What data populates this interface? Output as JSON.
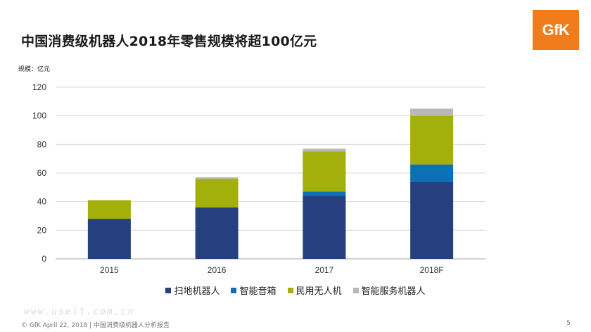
{
  "header": {
    "title": "中国消费级机器人2018年零售规模将超100亿元",
    "logo_text": "GfK",
    "unit_label": "规模：亿元"
  },
  "chart_data": {
    "type": "bar",
    "stacked": true,
    "title": "中国消费级机器人2018年零售规模将超100亿元",
    "ylabel": "规模：亿元",
    "xlabel": "",
    "categories": [
      "2015",
      "2016",
      "2017",
      "2018F"
    ],
    "ylim": [
      0,
      120
    ],
    "yticks": [
      0,
      20,
      40,
      60,
      80,
      100,
      120
    ],
    "grid": true,
    "legend_position": "bottom",
    "series": [
      {
        "name": "扫地机器人",
        "color": "#263f7e",
        "values": [
          28,
          36,
          44,
          54
        ]
      },
      {
        "name": "智能音箱",
        "color": "#0b71b5",
        "values": [
          0,
          0,
          3,
          12
        ]
      },
      {
        "name": "民用无人机",
        "color": "#a3af0a",
        "values": [
          13,
          20,
          28,
          34
        ]
      },
      {
        "name": "智能服务机器人",
        "color": "#b8b8b8",
        "values": [
          0,
          1,
          2,
          5
        ]
      }
    ]
  },
  "footer": {
    "text": "© GfK April 22, 2018 | 中国消费级机器人分析报告",
    "page_number": "5",
    "watermark": "www.useit.com.cn"
  }
}
